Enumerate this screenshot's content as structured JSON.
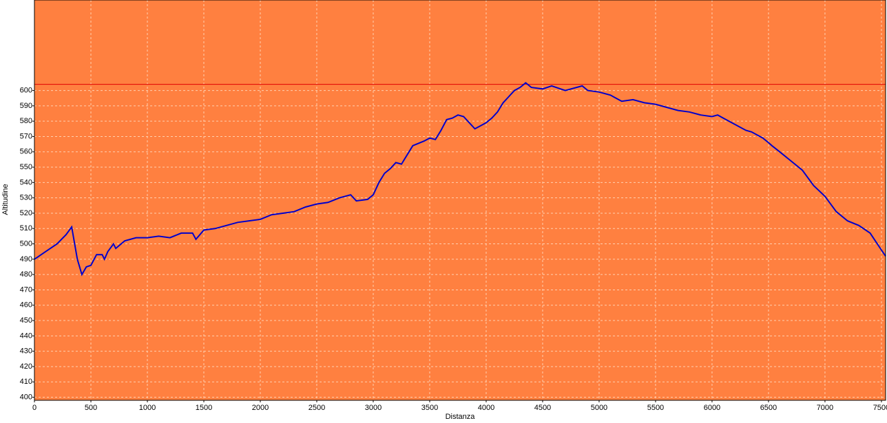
{
  "chart_data": {
    "type": "line",
    "x_label": "Distanza",
    "y_label": "Altitudine",
    "background": "#ff8040",
    "grid": true,
    "xlim": [
      0,
      7537
    ],
    "ylim": [
      398,
      659
    ],
    "xticks": [
      0,
      500,
      1000,
      1500,
      2000,
      2500,
      3000,
      3500,
      4000,
      4500,
      5000,
      5500,
      6000,
      6500,
      7000,
      7500
    ],
    "yticks": [
      400,
      410,
      420,
      430,
      440,
      450,
      460,
      470,
      480,
      490,
      500,
      510,
      520,
      530,
      540,
      550,
      560,
      570,
      580,
      590,
      600
    ],
    "reference_line": {
      "value": 604,
      "color": "#e00000"
    },
    "series": [
      {
        "color": "#0000cc",
        "x": [
          0,
          100,
          200,
          280,
          330,
          380,
          420,
          460,
          500,
          550,
          600,
          620,
          650,
          700,
          720,
          800,
          900,
          1000,
          1100,
          1200,
          1300,
          1400,
          1430,
          1500,
          1600,
          1700,
          1800,
          1900,
          2000,
          2100,
          2200,
          2300,
          2400,
          2500,
          2600,
          2700,
          2800,
          2850,
          2950,
          3000,
          3050,
          3100,
          3150,
          3200,
          3250,
          3300,
          3350,
          3450,
          3500,
          3550,
          3600,
          3650,
          3700,
          3750,
          3800,
          3850,
          3900,
          3950,
          4000,
          4050,
          4100,
          4150,
          4200,
          4250,
          4300,
          4350,
          4400,
          4500,
          4580,
          4700,
          4850,
          4900,
          5000,
          5100,
          5200,
          5300,
          5400,
          5500,
          5600,
          5700,
          5800,
          5900,
          6000,
          6050,
          6100,
          6200,
          6300,
          6350,
          6450,
          6500,
          6530,
          6600,
          6700,
          6800,
          6900,
          7000,
          7100,
          7200,
          7300,
          7400,
          7500,
          7537
        ],
        "values": [
          490,
          495,
          500,
          506,
          511,
          490,
          480,
          485,
          486,
          493,
          493,
          490,
          495,
          500,
          497,
          502,
          504,
          504,
          505,
          504,
          507,
          507,
          503,
          509,
          510,
          512,
          514,
          515,
          516,
          519,
          520,
          521,
          524,
          526,
          527,
          530,
          532,
          528,
          529,
          532,
          540,
          546,
          549,
          553,
          552,
          558,
          564,
          567,
          569,
          568,
          574,
          581,
          582,
          584,
          583,
          579,
          575,
          577,
          579,
          582,
          586,
          592,
          596,
          600,
          602,
          605,
          602,
          601,
          603,
          600,
          603,
          600,
          599,
          597,
          593,
          594,
          592,
          591,
          589,
          587,
          586,
          584,
          583,
          584,
          582,
          578,
          574,
          573,
          569,
          566,
          564,
          560,
          554,
          548,
          538,
          531,
          521,
          515,
          512,
          507,
          496,
          492
        ]
      }
    ]
  }
}
